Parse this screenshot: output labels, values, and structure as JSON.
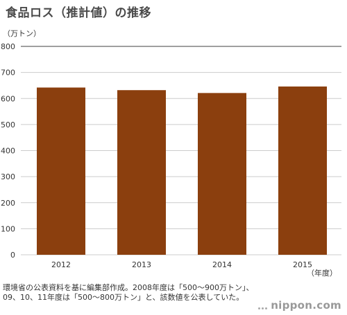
{
  "title": "食品ロス（推計値）の推移",
  "note": "環境省の公表資料を基に編集部作成。2008年度は「500〜900万トン」、09、10、11年度は「500〜800万トン」と、該数値を公表していた。",
  "logo": "nippon.com",
  "chart_data": {
    "type": "bar",
    "categories": [
      "2012",
      "2013",
      "2014",
      "2015"
    ],
    "values": [
      642,
      632,
      621,
      646
    ],
    "ylabel": "（万トン）",
    "xlabel": "（年度）",
    "ylim": [
      0,
      800
    ],
    "yticks": [
      0,
      100,
      200,
      300,
      400,
      500,
      600,
      700,
      800
    ],
    "grid": true,
    "bar_color": "#8b3f0e",
    "grid_color": "#cccccc"
  }
}
